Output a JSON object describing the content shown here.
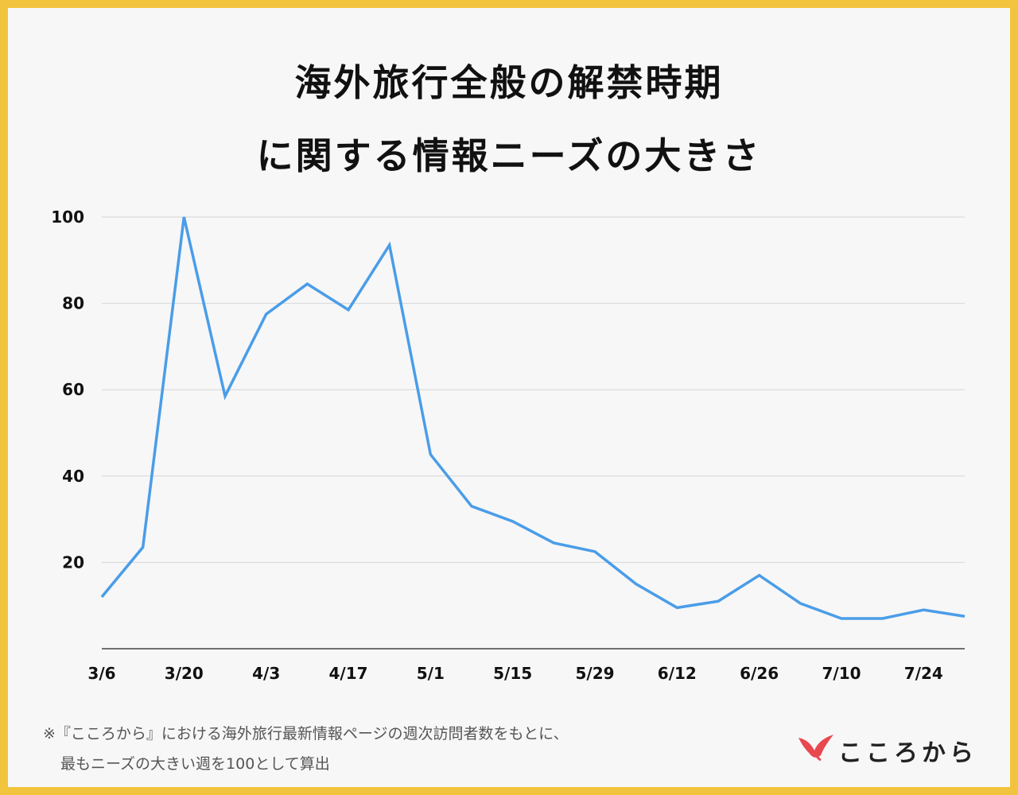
{
  "title_line1": "海外旅行全般の解禁時期",
  "title_line2": "に関する情報ニーズの大きさ",
  "chart_data": {
    "type": "line",
    "x": [
      "3/6",
      "3/13",
      "3/20",
      "3/27",
      "4/3",
      "4/10",
      "4/17",
      "4/24",
      "5/1",
      "5/8",
      "5/15",
      "5/22",
      "5/29",
      "6/5",
      "6/12",
      "6/19",
      "6/26",
      "7/3",
      "7/10",
      "7/17",
      "7/24",
      "7/31"
    ],
    "xticks": [
      "3/6",
      "3/20",
      "4/3",
      "4/17",
      "5/1",
      "5/15",
      "5/29",
      "6/12",
      "6/26",
      "7/10",
      "7/24"
    ],
    "yticks": [
      "20",
      "40",
      "60",
      "80",
      "100"
    ],
    "series": [
      {
        "values": [
          12,
          23.5,
          100,
          58.5,
          77.5,
          84.5,
          78.5,
          93.5,
          45,
          33,
          29.5,
          24.5,
          22.5,
          15,
          9.5,
          11,
          17,
          10.5,
          7,
          7,
          9,
          7.5
        ]
      }
    ],
    "ylim": [
      0,
      100
    ],
    "grid": true,
    "line_color": "#4a9de8"
  },
  "footnote_line1": "※『こころから』における海外旅行最新情報ページの週次訪問者数をもとに、",
  "footnote_line2": "最もニーズの大きい週を100として算出",
  "logo_text": "こころから",
  "colors": {
    "border": "#f2c43d",
    "background": "#f7f7f7",
    "line": "#4a9de8",
    "logo_bird": "#e8484f"
  }
}
